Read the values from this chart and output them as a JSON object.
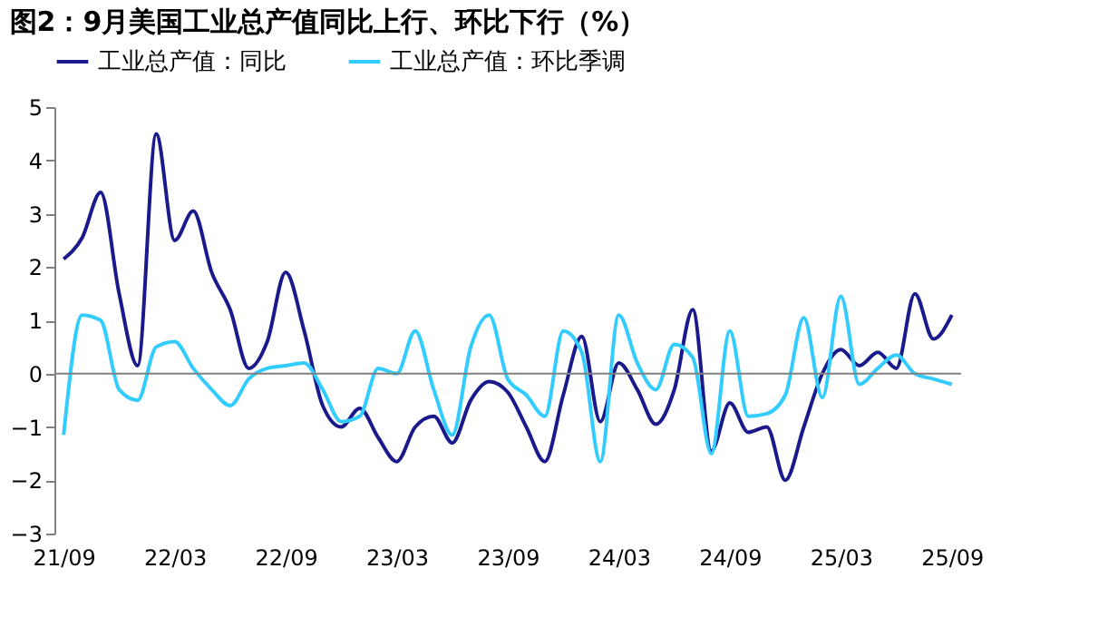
{
  "chart_data": {
    "type": "line",
    "title": "图2：9月美国工业总产值同比上行、环比下行（%）",
    "categories": [
      "21/09",
      null,
      null,
      null,
      null,
      null,
      "22/03",
      null,
      null,
      null,
      null,
      null,
      "22/09",
      null,
      null,
      null,
      null,
      null,
      "23/03",
      null,
      null,
      null,
      null,
      null,
      "23/09",
      null,
      null,
      null,
      null,
      null,
      "24/03",
      null,
      null,
      null,
      null,
      null,
      "24/09",
      null,
      null,
      null,
      null,
      null,
      "25/03",
      null,
      null,
      null,
      null,
      null,
      "25/09"
    ],
    "series": [
      {
        "name": "工业总产值：同比",
        "color": "#1a1a8c",
        "values": [
          2.15,
          2.55,
          3.4,
          1.5,
          0.15,
          4.5,
          2.5,
          3.05,
          1.9,
          1.2,
          0.1,
          0.6,
          1.9,
          0.8,
          -0.6,
          -1.0,
          -0.65,
          -1.2,
          -1.65,
          -1.0,
          -0.8,
          -1.3,
          -0.5,
          -0.15,
          -0.35,
          -1.0,
          -1.65,
          -0.4,
          0.7,
          -0.9,
          0.2,
          -0.3,
          -0.95,
          -0.3,
          1.2,
          -1.45,
          -0.55,
          -1.1,
          -1.0,
          -2.0,
          -1.0,
          0.0,
          0.45,
          0.15,
          0.4,
          0.1,
          1.5,
          0.65,
          1.1
        ]
      },
      {
        "name": "工业总产值：环比季调",
        "color": "#33ccff",
        "values": [
          -1.15,
          1.1,
          1.0,
          -0.3,
          -0.5,
          0.5,
          0.6,
          0.1,
          -0.3,
          -0.6,
          -0.1,
          0.1,
          0.15,
          0.2,
          -0.3,
          -0.9,
          -0.8,
          0.1,
          0.0,
          0.8,
          -0.3,
          -1.15,
          0.5,
          1.1,
          -0.1,
          -0.4,
          -0.8,
          0.8,
          0.4,
          -1.65,
          1.1,
          0.2,
          -0.3,
          0.55,
          0.3,
          -1.5,
          0.8,
          -0.8,
          -0.75,
          -0.4,
          1.05,
          -0.45,
          1.45,
          -0.2,
          0.1,
          0.35,
          0.0,
          -0.1,
          -0.2
        ]
      }
    ],
    "ylim": [
      -3,
      5
    ],
    "yticks": [
      -3,
      -2,
      -1,
      0,
      1,
      2,
      3,
      4,
      5
    ],
    "ref_lines": [
      {
        "axis": "y",
        "value": 0,
        "color": "#808080"
      }
    ],
    "grid": false,
    "legend": "top",
    "line_style": "solid",
    "marker": "none"
  }
}
